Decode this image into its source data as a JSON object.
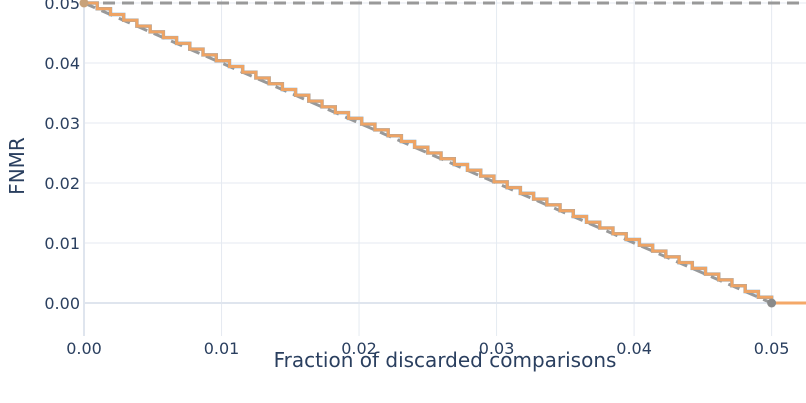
{
  "chart_data": {
    "type": "line",
    "title": "",
    "xlabel": "Fraction of discarded comparisons",
    "ylabel": "FNMR",
    "xlim": [
      0,
      0.0525
    ],
    "ylim": [
      -0.0055,
      0.0505
    ],
    "x_ticks": [
      0,
      0.01,
      0.02,
      0.03,
      0.04,
      0.05
    ],
    "x_tick_labels": [
      "0.00",
      "0.01",
      "0.02",
      "0.03",
      "0.04",
      "0.05"
    ],
    "y_ticks": [
      0,
      0.01,
      0.02,
      0.03,
      0.04,
      0.05
    ],
    "y_tick_labels": [
      "0.00",
      "0.01",
      "0.02",
      "0.03",
      "0.04",
      "0.05"
    ],
    "grid": true,
    "legend": "none",
    "reference_line": {
      "y": 0.05,
      "style": "dashed",
      "color": "#999999"
    },
    "series": [
      {
        "style": "dashed",
        "color": "#999999",
        "x": [
          0,
          0.05
        ],
        "y": [
          0.05,
          0
        ]
      },
      {
        "style": "step",
        "color": "#6f9ec6",
        "step_count": 52,
        "x": [
          0,
          0.05
        ],
        "y": [
          0.05,
          0
        ]
      },
      {
        "style": "step",
        "color": "#f4a460",
        "step_count": 52,
        "x": [
          0,
          0.05,
          0.0525
        ],
        "y": [
          0.05,
          0,
          0
        ]
      }
    ],
    "markers": [
      {
        "x": 0,
        "y": 0.05,
        "color": "#c8a27a"
      },
      {
        "x": 0.05,
        "y": 0,
        "color": "#8a8a8a"
      }
    ]
  }
}
